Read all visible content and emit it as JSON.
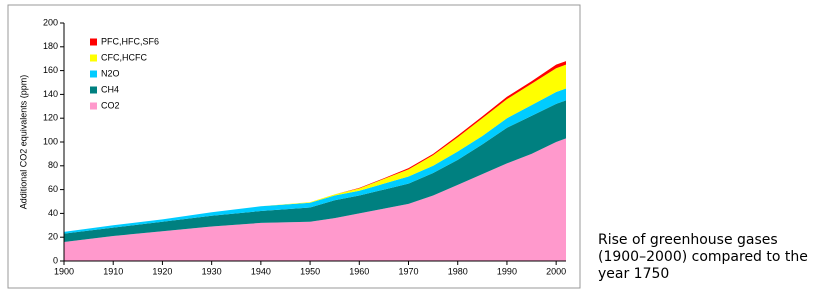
{
  "chart_data": {
    "type": "stacked-area",
    "y_label": "Additional CO2 equivalents (ppm)",
    "caption": "Rise of greenhouse gases (1900–2000) compared to the year 1750",
    "x": [
      1900,
      1910,
      1920,
      1930,
      1940,
      1950,
      1955,
      1960,
      1965,
      1970,
      1975,
      1980,
      1985,
      1990,
      1995,
      2000,
      2002
    ],
    "series": [
      {
        "name": "CO2",
        "color": "#ff99cc",
        "values": [
          16,
          21,
          25,
          29,
          32,
          33,
          36,
          40,
          44,
          48,
          55,
          64,
          73,
          82,
          90,
          100,
          103
        ]
      },
      {
        "name": "CH4",
        "color": "#008080",
        "values": [
          7,
          7,
          8,
          9,
          10,
          12,
          15,
          15,
          16,
          17,
          19,
          21,
          25,
          30,
          32,
          32,
          32
        ]
      },
      {
        "name": "N2O",
        "color": "#00ccff",
        "values": [
          1.5,
          2,
          2,
          3,
          4,
          4,
          4,
          4,
          5,
          6,
          6,
          7,
          7,
          8,
          9,
          10,
          10
        ]
      },
      {
        "name": "CFC,HCFC",
        "color": "#ffff00",
        "values": [
          0,
          0,
          0,
          0,
          0,
          0.5,
          1,
          2,
          4,
          6,
          9,
          12,
          15,
          16,
          18,
          20,
          20
        ]
      },
      {
        "name": "PFC,HFC,SF6",
        "color": "#ff0000",
        "values": [
          0,
          0,
          0,
          0,
          0,
          0,
          0,
          0.5,
          0.5,
          1,
          1,
          1.5,
          1.5,
          2,
          2,
          3,
          3
        ]
      }
    ],
    "xlim": [
      1900,
      2002
    ],
    "xticks": [
      1900,
      1910,
      1920,
      1930,
      1940,
      1950,
      1960,
      1970,
      1980,
      1990,
      2000
    ],
    "ylim": [
      0,
      200
    ],
    "yticks": [
      0,
      20,
      40,
      60,
      80,
      100,
      120,
      140,
      160,
      180,
      200
    ],
    "legend": "top-left"
  }
}
